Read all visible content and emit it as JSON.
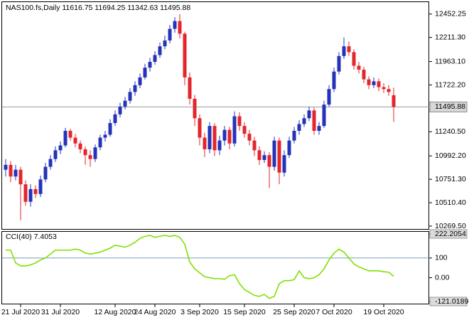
{
  "chart_data": [
    {
      "type": "candlestick",
      "title": "NAS100.fs,Daily  11616.75 11694.25 11342.63 11495.88",
      "categories": [
        null,
        null,
        null,
        "21 Jul 2020",
        null,
        null,
        null,
        null,
        null,
        null,
        null,
        "31 Jul 2020",
        null,
        null,
        null,
        null,
        null,
        null,
        null,
        null,
        null,
        null,
        "12 Aug 2020",
        null,
        null,
        null,
        null,
        null,
        null,
        null,
        "24 Aug 2020",
        null,
        null,
        null,
        null,
        null,
        null,
        null,
        null,
        "3 Sep 2020",
        null,
        null,
        null,
        null,
        null,
        null,
        null,
        null,
        "15 Sep 2020",
        null,
        null,
        null,
        null,
        null,
        null,
        null,
        null,
        null,
        "25 Sep 2020",
        null,
        null,
        null,
        null,
        null,
        null,
        null,
        "7 Oct 2020",
        null,
        null,
        null,
        null,
        null,
        null,
        null,
        null,
        null,
        "19 Oct 2020",
        null,
        null
      ],
      "open": [
        10850,
        10900,
        10780,
        10850,
        10700,
        10520,
        10650,
        10600,
        10750,
        10880,
        10960,
        11050,
        11100,
        11250,
        11180,
        11120,
        11060,
        11000,
        10960,
        11080,
        11180,
        11210,
        11330,
        11420,
        11500,
        11560,
        11650,
        11720,
        11800,
        11900,
        11960,
        12030,
        12120,
        12180,
        12300,
        12380,
        12250,
        11800,
        11580,
        11380,
        11180,
        11060,
        11300,
        11050,
        11150,
        11260,
        11120,
        11400,
        11300,
        11220,
        11150,
        11050,
        10950,
        11000,
        10880,
        11150,
        10820,
        11000,
        11150,
        11250,
        11320,
        11380,
        11460,
        11250,
        11300,
        11520,
        11680,
        11860,
        12020,
        12120,
        12060,
        11920,
        11880,
        11780,
        11720,
        11760,
        11700,
        11680,
        11616.75
      ],
      "high": [
        10960,
        10940,
        10900,
        10880,
        10740,
        10700,
        10690,
        10790,
        10920,
        11000,
        11090,
        11140,
        11280,
        11270,
        11220,
        11150,
        11090,
        11050,
        11110,
        11210,
        11250,
        11370,
        11460,
        11540,
        11600,
        11690,
        11760,
        11840,
        11940,
        12000,
        12070,
        12160,
        12230,
        12340,
        12420,
        12452,
        12270,
        11850,
        11620,
        11420,
        11230,
        11340,
        11330,
        11200,
        11300,
        11290,
        11450,
        11440,
        11340,
        11260,
        11190,
        11090,
        11040,
        11030,
        11190,
        11180,
        11050,
        11190,
        11290,
        11360,
        11420,
        11500,
        11490,
        11340,
        11560,
        11720,
        11900,
        12060,
        12211,
        12170,
        12090,
        11960,
        11910,
        11810,
        11800,
        11790,
        11740,
        11720,
        11694.25
      ],
      "low": [
        10780,
        10720,
        10740,
        10330,
        10480,
        10470,
        10560,
        10570,
        10720,
        10850,
        10930,
        11010,
        11080,
        11150,
        11080,
        11020,
        10900,
        10880,
        10930,
        11050,
        11140,
        11190,
        11300,
        11390,
        11470,
        11530,
        11610,
        11690,
        11780,
        11860,
        11930,
        12000,
        12090,
        12150,
        12260,
        12200,
        11720,
        11520,
        11300,
        11100,
        10980,
        11020,
        10990,
        11000,
        11100,
        11060,
        11090,
        11250,
        11180,
        11100,
        10990,
        10900,
        10920,
        10660,
        10840,
        10700,
        10780,
        10970,
        11120,
        11210,
        11290,
        11350,
        11210,
        11210,
        11280,
        11500,
        11650,
        11830,
        11990,
        12020,
        11880,
        11840,
        11740,
        11680,
        11690,
        11660,
        11640,
        11610,
        11342.63
      ],
      "close": [
        10900,
        10780,
        10850,
        10700,
        10520,
        10650,
        10600,
        10750,
        10880,
        10960,
        11050,
        11100,
        11250,
        11180,
        11120,
        11060,
        11000,
        10960,
        11080,
        11180,
        11210,
        11330,
        11420,
        11500,
        11560,
        11650,
        11720,
        11800,
        11900,
        11960,
        12030,
        12120,
        12180,
        12300,
        12380,
        12250,
        11800,
        11580,
        11380,
        11180,
        11060,
        11300,
        11050,
        11150,
        11260,
        11120,
        11400,
        11300,
        11220,
        11150,
        11050,
        10950,
        11000,
        10880,
        11150,
        10820,
        11000,
        11150,
        11250,
        11320,
        11380,
        11460,
        11250,
        11300,
        11520,
        11680,
        11860,
        12020,
        12120,
        12060,
        11920,
        11880,
        11780,
        11720,
        11760,
        11700,
        11680,
        11650,
        11495.88
      ],
      "up_color": "#2433b8",
      "down_color": "#e3262b",
      "ylim": [
        10240,
        12560
      ],
      "yticks": [
        12452.25,
        {
          "value": 12211.3,
          "label": "12211.30"
        },
        {
          "value": 11963.1,
          "label": "11963.10"
        },
        {
          "value": 11722.2,
          "label": "11722.20"
        },
        {
          "value": 11240.5,
          "label": "11240.50"
        },
        {
          "value": 10992.2,
          "label": "10992.20"
        },
        {
          "value": 10751.3,
          "label": "10751.30"
        },
        {
          "value": 10510.4,
          "label": "10510.40"
        },
        {
          "value": 10269.5,
          "label": "10269.50"
        }
      ],
      "last_price": 11495.88
    },
    {
      "type": "line",
      "title": "CCI(40) 7.4053",
      "values": [
        140,
        140,
        75,
        60,
        60,
        65,
        75,
        90,
        100,
        120,
        140,
        140,
        140,
        140,
        145,
        140,
        125,
        120,
        125,
        130,
        140,
        150,
        165,
        160,
        155,
        165,
        180,
        200,
        210,
        215,
        205,
        210,
        215,
        210,
        215,
        205,
        170,
        80,
        45,
        25,
        5,
        0,
        -5,
        -5,
        -8,
        10,
        15,
        -30,
        -60,
        -75,
        -90,
        -95,
        -85,
        -105,
        -95,
        -30,
        -15,
        -15,
        -10,
        35,
        0,
        -5,
        0,
        15,
        45,
        90,
        125,
        145,
        130,
        100,
        70,
        55,
        45,
        35,
        35,
        35,
        30,
        28,
        7.4053
      ],
      "color": "#80e000",
      "ylim": [
        -121.0189,
        222.2054
      ],
      "yticks": [
        222.2054,
        100,
        {
          "value": 0,
          "label": "0.00"
        },
        -121.0189
      ]
    }
  ]
}
